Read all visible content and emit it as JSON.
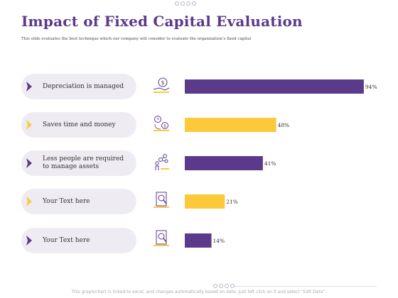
{
  "title": "Impact of Fixed Capital Evaluation",
  "subtitle": "This slide evaluates the best technique which our company will consider to evaluate the organization’s fixed capital",
  "footnote": "This graph/chart is linked to excel, and changes automatically based on data. Just left click on it and select “Edit Data”.",
  "colors": {
    "purple": "#5b3a8c",
    "yellow": "#fcc93b",
    "pill": "#eeebf3",
    "icon_line": "#5b3a8c"
  },
  "items": [
    {
      "label_line1": "Depreciation is managed",
      "label_line2": "",
      "icon": "dollar-hand-icon",
      "arrow_color": "#5b3a8c"
    },
    {
      "label_line1": "Saves time and money",
      "label_line2": "",
      "icon": "clock-coin-cycle-icon",
      "arrow_color": "#fcc93b"
    },
    {
      "label_line1": "Less people are required",
      "label_line2": "to manage assets",
      "icon": "people-network-icon",
      "arrow_color": "#5b3a8c"
    },
    {
      "label_line1": "Your Text here",
      "label_line2": "",
      "icon": "magnifier-document-icon",
      "arrow_color": "#fcc93b"
    },
    {
      "label_line1": "Your Text here",
      "label_line2": "",
      "icon": "magnifier-document-icon",
      "arrow_color": "#5b3a8c"
    }
  ],
  "chart_data": {
    "type": "bar",
    "orientation": "horizontal",
    "categories": [
      "Depreciation is managed",
      "Saves time and money",
      "Less people are required to manage assets",
      "Your Text here",
      "Your Text here"
    ],
    "values": [
      94,
      48,
      41,
      21,
      14
    ],
    "value_labels": [
      "94%",
      "48%",
      "41%",
      "21%",
      "14%"
    ],
    "bar_colors": [
      "#5b3a8c",
      "#fcc93b",
      "#5b3a8c",
      "#fcc93b",
      "#5b3a8c"
    ],
    "xlim": [
      0,
      100
    ],
    "grid": false
  }
}
